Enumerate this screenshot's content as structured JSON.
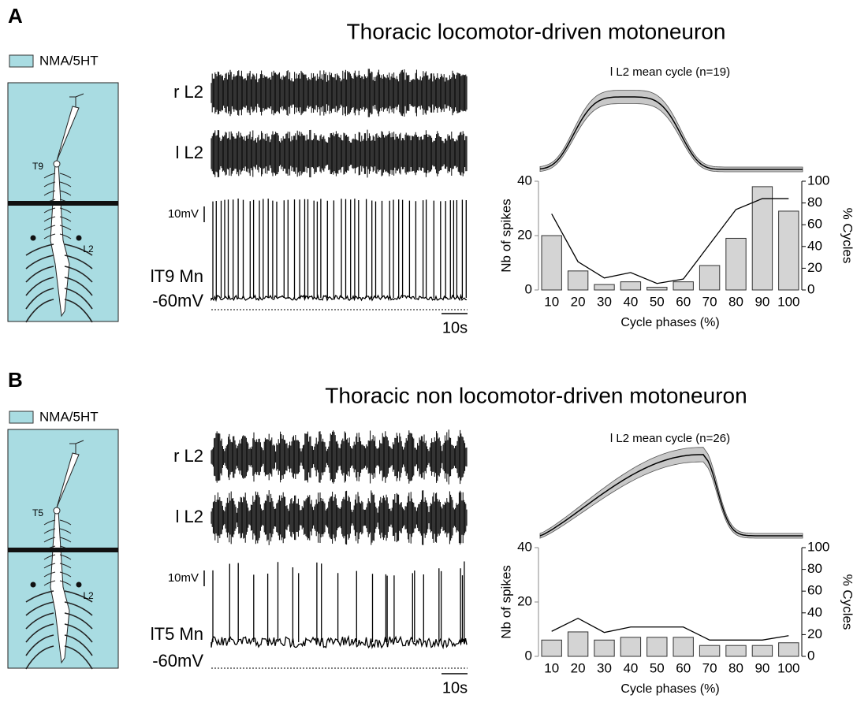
{
  "panels": [
    {
      "letter": "A",
      "title": "Thoracic locomotor-driven motoneuron",
      "legend": "NMA/5HT",
      "segment_label": "T9",
      "nerve_label": "L2",
      "traces": [
        "r L2",
        "l L2",
        "lT9 Mn"
      ],
      "voltage_scale": "10mV",
      "resting": "-60mV",
      "time_scale": "10s"
    },
    {
      "letter": "B",
      "title": "Thoracic non locomotor-driven motoneuron",
      "legend": "NMA/5HT",
      "segment_label": "T5",
      "nerve_label": "L2",
      "traces": [
        "r L2",
        "l L2",
        "lT5 Mn"
      ],
      "voltage_scale": "10mV",
      "resting": "-60mV",
      "time_scale": "10s"
    }
  ],
  "chart_data": [
    {
      "type": "bar",
      "title": "l L2 mean cycle (n=19)",
      "xlabel": "Cycle phases (%)",
      "ylabel": "Nb of spikes",
      "y2label": "% Cycles",
      "categories": [
        "10",
        "20",
        "30",
        "40",
        "50",
        "60",
        "70",
        "80",
        "90",
        "100"
      ],
      "series": [
        {
          "color": "#d4d4d4",
          "values": [
            20,
            7,
            2,
            3,
            1,
            3,
            9,
            19,
            38,
            29
          ]
        },
        {
          "color": "#000000",
          "axis": "y2",
          "values": [
            70,
            26,
            11,
            16,
            6,
            10,
            42,
            74,
            84,
            84
          ]
        }
      ],
      "ylim": [
        0,
        40
      ],
      "yticks": [
        0,
        20,
        40
      ],
      "y2lim": [
        0,
        100
      ],
      "y2ticks": [
        0,
        20,
        40,
        60,
        80,
        100
      ]
    },
    {
      "type": "bar",
      "title": "l L2 mean cycle (n=26)",
      "xlabel": "Cycle phases (%)",
      "ylabel": "Nb of spikes",
      "y2label": "% Cycles",
      "categories": [
        "10",
        "20",
        "30",
        "40",
        "50",
        "60",
        "70",
        "80",
        "90",
        "100"
      ],
      "series": [
        {
          "color": "#d4d4d4",
          "values": [
            6,
            9,
            6,
            7,
            7,
            7,
            4,
            4,
            4,
            5
          ]
        },
        {
          "color": "#000000",
          "axis": "y2",
          "values": [
            23,
            35,
            22,
            27,
            27,
            27,
            15,
            15,
            15,
            19
          ]
        }
      ],
      "ylim": [
        0,
        40
      ],
      "yticks": [
        0,
        20,
        40
      ],
      "y2lim": [
        0,
        100
      ],
      "y2ticks": [
        0,
        20,
        40,
        60,
        80,
        100
      ]
    }
  ]
}
